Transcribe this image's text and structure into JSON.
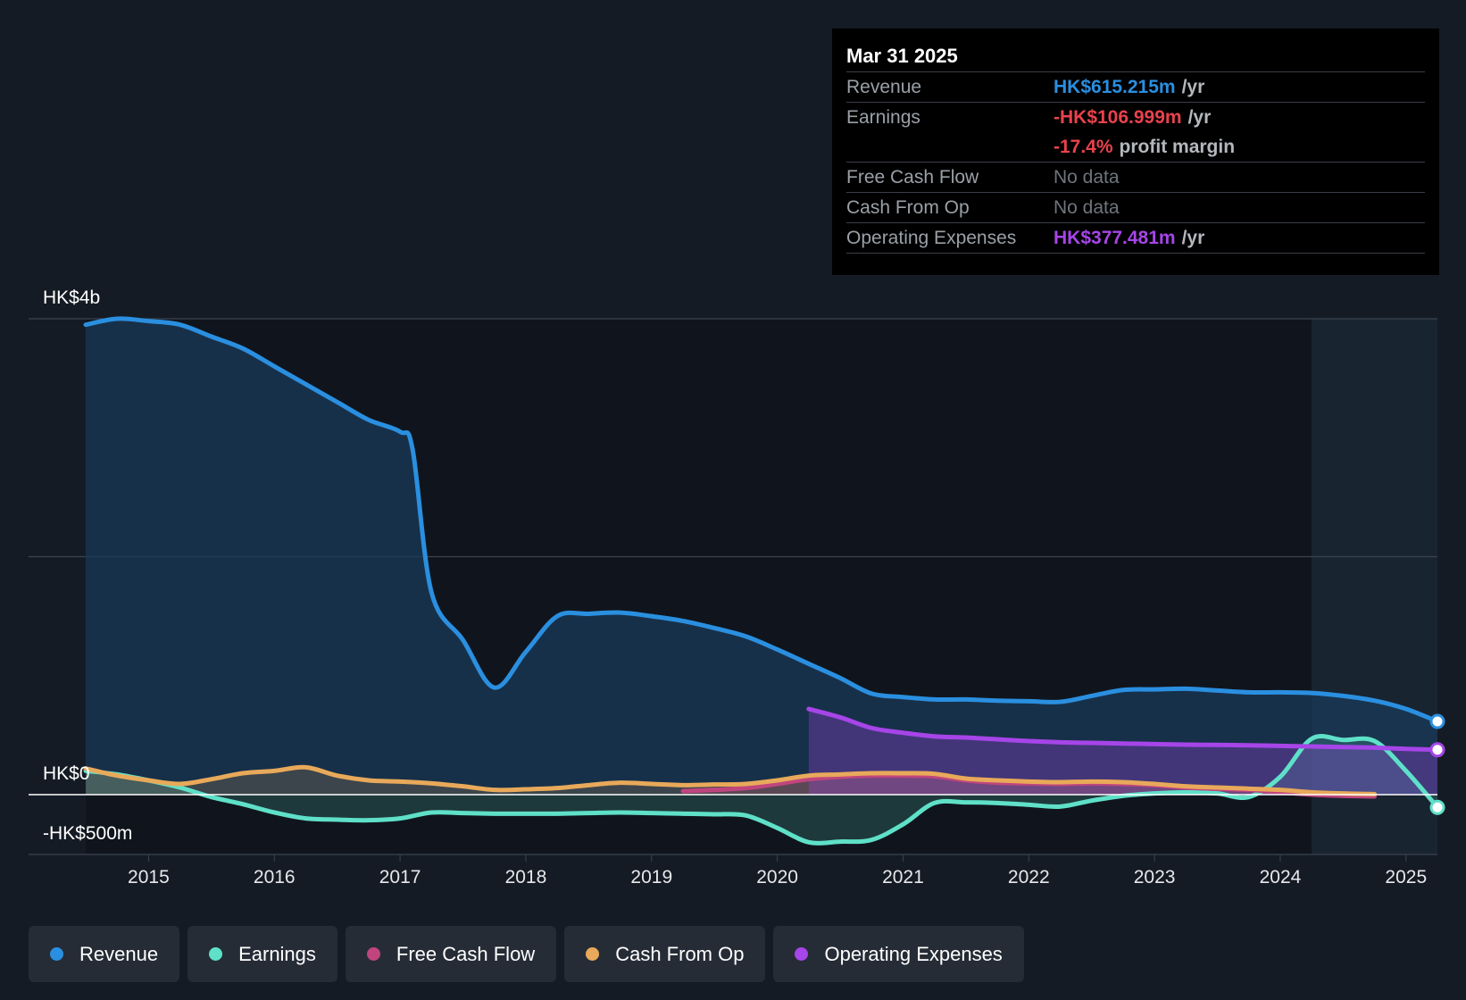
{
  "chart_data": {
    "type": "area",
    "y_axis_labels": [
      "HK$4b",
      "HK$0",
      "-HK$500m"
    ],
    "ylim": [
      -500,
      4000
    ],
    "xlim": [
      2014.5,
      2025.25
    ],
    "x_ticks": [
      "2015",
      "2016",
      "2017",
      "2018",
      "2019",
      "2020",
      "2021",
      "2022",
      "2023",
      "2024",
      "2025"
    ],
    "series": [
      {
        "name": "Revenue",
        "color": "#2a8fe0",
        "unit": "HK$m",
        "points": [
          [
            2014.5,
            3950
          ],
          [
            2014.75,
            4000
          ],
          [
            2015.0,
            3980
          ],
          [
            2015.25,
            3950
          ],
          [
            2015.5,
            3850
          ],
          [
            2015.75,
            3750
          ],
          [
            2016.0,
            3600
          ],
          [
            2016.25,
            3450
          ],
          [
            2016.5,
            3300
          ],
          [
            2016.75,
            3150
          ],
          [
            2017.0,
            3050
          ],
          [
            2017.1,
            2900
          ],
          [
            2017.25,
            1700
          ],
          [
            2017.5,
            1300
          ],
          [
            2017.75,
            900
          ],
          [
            2018.0,
            1200
          ],
          [
            2018.25,
            1500
          ],
          [
            2018.5,
            1520
          ],
          [
            2018.75,
            1530
          ],
          [
            2019.0,
            1500
          ],
          [
            2019.25,
            1460
          ],
          [
            2019.5,
            1400
          ],
          [
            2019.75,
            1330
          ],
          [
            2020.0,
            1220
          ],
          [
            2020.25,
            1100
          ],
          [
            2020.5,
            980
          ],
          [
            2020.75,
            850
          ],
          [
            2021.0,
            820
          ],
          [
            2021.25,
            800
          ],
          [
            2021.5,
            800
          ],
          [
            2021.75,
            790
          ],
          [
            2022.0,
            785
          ],
          [
            2022.25,
            780
          ],
          [
            2022.5,
            830
          ],
          [
            2022.75,
            880
          ],
          [
            2023.0,
            885
          ],
          [
            2023.25,
            890
          ],
          [
            2023.5,
            875
          ],
          [
            2023.75,
            860
          ],
          [
            2024.0,
            860
          ],
          [
            2024.25,
            855
          ],
          [
            2024.5,
            830
          ],
          [
            2024.75,
            790
          ],
          [
            2025.0,
            720
          ],
          [
            2025.25,
            615.215
          ]
        ]
      },
      {
        "name": "Earnings",
        "color": "#5fe0c8",
        "unit": "HK$m",
        "points": [
          [
            2014.5,
            200
          ],
          [
            2014.75,
            170
          ],
          [
            2015.0,
            120
          ],
          [
            2015.25,
            60
          ],
          [
            2015.5,
            -20
          ],
          [
            2015.75,
            -80
          ],
          [
            2016.0,
            -150
          ],
          [
            2016.25,
            -200
          ],
          [
            2016.5,
            -210
          ],
          [
            2016.75,
            -215
          ],
          [
            2017.0,
            -200
          ],
          [
            2017.25,
            -150
          ],
          [
            2017.5,
            -155
          ],
          [
            2017.75,
            -160
          ],
          [
            2018.0,
            -160
          ],
          [
            2018.25,
            -160
          ],
          [
            2018.5,
            -155
          ],
          [
            2018.75,
            -150
          ],
          [
            2019.0,
            -155
          ],
          [
            2019.25,
            -160
          ],
          [
            2019.5,
            -165
          ],
          [
            2019.75,
            -175
          ],
          [
            2020.0,
            -280
          ],
          [
            2020.25,
            -400
          ],
          [
            2020.5,
            -395
          ],
          [
            2020.75,
            -380
          ],
          [
            2021.0,
            -250
          ],
          [
            2021.25,
            -70
          ],
          [
            2021.5,
            -65
          ],
          [
            2021.75,
            -70
          ],
          [
            2022.0,
            -85
          ],
          [
            2022.25,
            -100
          ],
          [
            2022.5,
            -50
          ],
          [
            2022.75,
            -10
          ],
          [
            2023.0,
            10
          ],
          [
            2023.25,
            20
          ],
          [
            2023.5,
            10
          ],
          [
            2023.75,
            -20
          ],
          [
            2024.0,
            150
          ],
          [
            2024.25,
            470
          ],
          [
            2024.5,
            460
          ],
          [
            2024.75,
            450
          ],
          [
            2025.0,
            200
          ],
          [
            2025.25,
            -106.999
          ]
        ]
      },
      {
        "name": "Free Cash Flow",
        "color": "#c0457e",
        "unit": "HK$m",
        "points": [
          [
            2019.25,
            30
          ],
          [
            2019.5,
            40
          ],
          [
            2019.75,
            55
          ],
          [
            2020.0,
            90
          ],
          [
            2020.25,
            130
          ],
          [
            2020.5,
            150
          ],
          [
            2020.75,
            160
          ],
          [
            2021.0,
            160
          ],
          [
            2021.25,
            155
          ],
          [
            2021.5,
            120
          ],
          [
            2021.75,
            100
          ],
          [
            2022.0,
            95
          ],
          [
            2022.25,
            90
          ],
          [
            2022.5,
            95
          ],
          [
            2022.75,
            90
          ],
          [
            2023.0,
            80
          ],
          [
            2023.25,
            60
          ],
          [
            2023.5,
            50
          ],
          [
            2023.75,
            40
          ],
          [
            2024.0,
            20
          ],
          [
            2024.25,
            0
          ],
          [
            2024.5,
            -10
          ],
          [
            2024.75,
            -15
          ]
        ]
      },
      {
        "name": "Cash From Op",
        "color": "#e8a95a",
        "unit": "HK$m",
        "points": [
          [
            2014.5,
            220
          ],
          [
            2014.75,
            160
          ],
          [
            2015.0,
            120
          ],
          [
            2015.25,
            90
          ],
          [
            2015.5,
            130
          ],
          [
            2015.75,
            180
          ],
          [
            2016.0,
            200
          ],
          [
            2016.25,
            230
          ],
          [
            2016.5,
            160
          ],
          [
            2016.75,
            120
          ],
          [
            2017.0,
            110
          ],
          [
            2017.25,
            95
          ],
          [
            2017.5,
            70
          ],
          [
            2017.75,
            40
          ],
          [
            2018.0,
            45
          ],
          [
            2018.25,
            55
          ],
          [
            2018.5,
            80
          ],
          [
            2018.75,
            100
          ],
          [
            2019.0,
            90
          ],
          [
            2019.25,
            80
          ],
          [
            2019.5,
            85
          ],
          [
            2019.75,
            90
          ],
          [
            2020.0,
            120
          ],
          [
            2020.25,
            160
          ],
          [
            2020.5,
            170
          ],
          [
            2020.75,
            180
          ],
          [
            2021.0,
            180
          ],
          [
            2021.25,
            175
          ],
          [
            2021.5,
            135
          ],
          [
            2021.75,
            120
          ],
          [
            2022.0,
            110
          ],
          [
            2022.25,
            105
          ],
          [
            2022.5,
            110
          ],
          [
            2022.75,
            105
          ],
          [
            2023.0,
            90
          ],
          [
            2023.25,
            70
          ],
          [
            2023.5,
            60
          ],
          [
            2023.75,
            50
          ],
          [
            2024.0,
            40
          ],
          [
            2024.25,
            20
          ],
          [
            2024.5,
            10
          ],
          [
            2024.75,
            5
          ]
        ]
      },
      {
        "name": "Operating Expenses",
        "color": "#a645e8",
        "unit": "HK$m",
        "points": [
          [
            2020.25,
            720
          ],
          [
            2020.5,
            650
          ],
          [
            2020.75,
            560
          ],
          [
            2021.0,
            520
          ],
          [
            2021.25,
            490
          ],
          [
            2021.5,
            480
          ],
          [
            2021.75,
            465
          ],
          [
            2022.0,
            450
          ],
          [
            2022.25,
            440
          ],
          [
            2022.5,
            435
          ],
          [
            2022.75,
            430
          ],
          [
            2023.0,
            425
          ],
          [
            2023.25,
            420
          ],
          [
            2023.5,
            418
          ],
          [
            2023.75,
            415
          ],
          [
            2024.0,
            410
          ],
          [
            2024.25,
            405
          ],
          [
            2024.5,
            400
          ],
          [
            2024.75,
            395
          ],
          [
            2025.0,
            385
          ],
          [
            2025.25,
            377.481
          ]
        ]
      }
    ]
  },
  "tooltip": {
    "date": "Mar 31 2025",
    "rows": [
      {
        "label": "Revenue",
        "value": "HK$615.215m",
        "unit": "/yr",
        "color": "#2a8fe0"
      },
      {
        "label": "Earnings",
        "value": "-HK$106.999m",
        "unit": "/yr",
        "color": "#e8424d"
      },
      {
        "label": "",
        "value": "-17.4%",
        "unit": "profit margin",
        "color": "#e8424d"
      },
      {
        "label": "Free Cash Flow",
        "value": "No data",
        "unit": "",
        "color": "#6f757c"
      },
      {
        "label": "Cash From Op",
        "value": "No data",
        "unit": "",
        "color": "#6f757c"
      },
      {
        "label": "Operating Expenses",
        "value": "HK$377.481m",
        "unit": "/yr",
        "color": "#a645e8"
      }
    ]
  },
  "legend": [
    {
      "label": "Revenue",
      "color": "#2a8fe0"
    },
    {
      "label": "Earnings",
      "color": "#5fe0c8"
    },
    {
      "label": "Free Cash Flow",
      "color": "#c0457e"
    },
    {
      "label": "Cash From Op",
      "color": "#e8a95a"
    },
    {
      "label": "Operating Expenses",
      "color": "#a645e8"
    }
  ]
}
